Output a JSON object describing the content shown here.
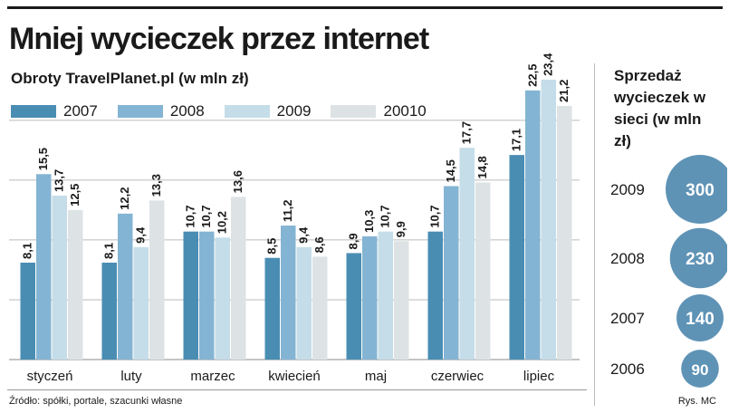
{
  "title": "Mniej wycieczek przez internet",
  "source_note": "Źródło: spółki, portale, szacunki własne",
  "credit": "Rys. MC",
  "colors": {
    "2007": "#4a8db3",
    "2008": "#84b4d3",
    "2009": "#c5dde9",
    "20010": "#dde3e5",
    "circle": "#5e93b6",
    "grid": "#bbbbbb"
  },
  "chart_data": [
    {
      "type": "bar",
      "title": "Obroty TravelPlanet.pl (w mln zł)",
      "categories": [
        "styczeń",
        "luty",
        "marzec",
        "kwiecień",
        "maj",
        "czerwiec",
        "lipiec"
      ],
      "series": [
        {
          "name": "2007",
          "values": [
            8.1,
            8.1,
            10.7,
            8.5,
            8.9,
            10.7,
            17.1
          ]
        },
        {
          "name": "2008",
          "values": [
            15.5,
            12.2,
            10.7,
            11.2,
            10.3,
            14.5,
            22.5
          ]
        },
        {
          "name": "2009",
          "values": [
            13.7,
            9.4,
            10.2,
            9.4,
            10.7,
            17.7,
            23.4
          ]
        },
        {
          "name": "20010",
          "values": [
            12.5,
            13.3,
            13.6,
            8.6,
            9.9,
            14.8,
            21.2
          ]
        }
      ],
      "ylim": [
        0,
        24
      ],
      "grid": true,
      "legend_position": "top"
    },
    {
      "type": "bubble",
      "title": "Sprzedaż wycieczek w sieci (w mln zł)",
      "categories": [
        "2009",
        "2008",
        "2007",
        "2006"
      ],
      "values": [
        300,
        230,
        140,
        90
      ]
    }
  ]
}
